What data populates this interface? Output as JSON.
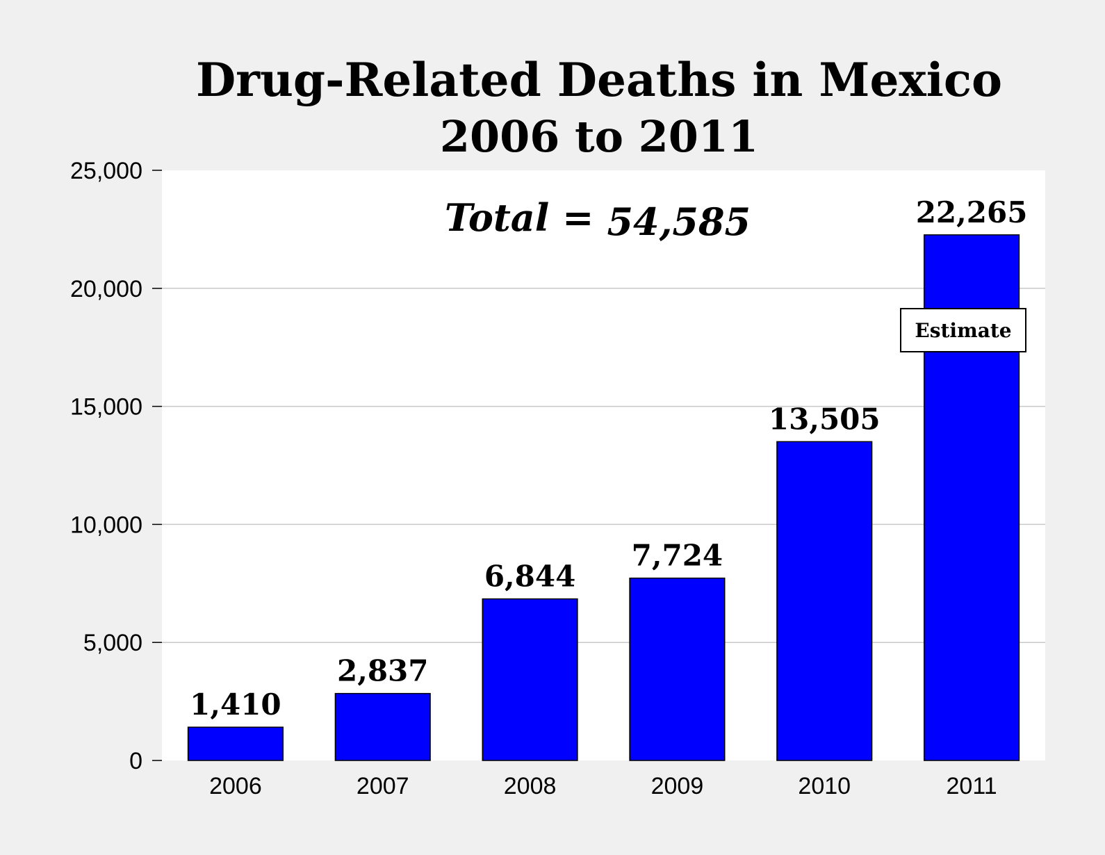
{
  "chart_data": {
    "type": "bar",
    "title": "Drug-Related Deaths in Mexico",
    "subtitle": "2006 to 2011",
    "categories": [
      "2006",
      "2007",
      "2008",
      "2009",
      "2010",
      "2011"
    ],
    "values": [
      1410,
      2837,
      6844,
      7724,
      13505,
      22265
    ],
    "data_labels": [
      "1,410",
      "2,837",
      "6,844",
      "7,724",
      "13,505",
      "22,265"
    ],
    "ylim": [
      0,
      25000
    ],
    "y_ticks": [
      0,
      5000,
      10000,
      15000,
      20000,
      25000
    ],
    "y_tick_labels": [
      "0",
      "5,000",
      "10,000",
      "15,000",
      "20,000",
      "25,000"
    ],
    "xlabel": "",
    "ylabel": "",
    "grid": true,
    "bar_color": "#0000ff",
    "annotations": {
      "total_label": "Total =",
      "total_value": "54,585",
      "estimate_label": "Estimate"
    }
  }
}
